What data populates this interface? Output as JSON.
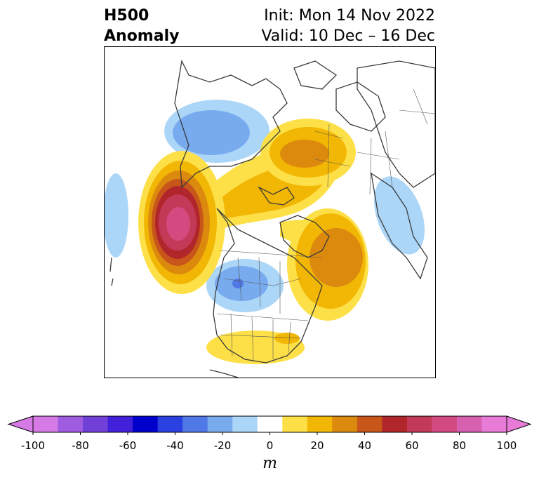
{
  "title": {
    "left_line1": "H500",
    "left_line2": "Anomaly",
    "right_line1": "Init: Mon 14 Nov 2022",
    "right_line2": "Valid: 10 Dec – 16 Dec"
  },
  "colorbar": {
    "unit": "m",
    "min": -100,
    "max": 100,
    "step": 10,
    "tick_values": [
      -100,
      -80,
      -60,
      -40,
      -20,
      0,
      20,
      40,
      60,
      80,
      100
    ],
    "tick_labels": [
      "-100",
      "-80",
      "-60",
      "-40",
      "-20",
      "0",
      "20",
      "40",
      "60",
      "80",
      "100"
    ],
    "extend": "both",
    "colors": [
      "#d67ae6",
      "#a05ce0",
      "#7040d8",
      "#4020d8",
      "#0000cc",
      "#2a40e0",
      "#5078e6",
      "#78aaee",
      "#acd6f8",
      "#ffffff",
      "#fde047",
      "#f2b705",
      "#dc8a0e",
      "#c8561a",
      "#b0262a",
      "#c23a58",
      "#d24a80",
      "#d860b0",
      "#e87ad8"
    ],
    "low_extend_color": "#d67ae6",
    "high_extend_color": "#e87ad8"
  },
  "map": {
    "projection": "polar-stereographic",
    "variable": "500 hPa geopotential height anomaly",
    "anomalies": [
      {
        "sign": "negative",
        "region": "western Siberia / Arctic Russia",
        "peak_m": -30
      },
      {
        "sign": "negative",
        "region": "central Canada / northern Plains",
        "peak_m": -40
      },
      {
        "sign": "negative",
        "region": "central North Pacific",
        "peak_m": -20
      },
      {
        "sign": "negative",
        "region": "western Europe",
        "peak_m": -20
      },
      {
        "sign": "positive",
        "region": "Gulf of Alaska / NE Pacific",
        "peak_m": 80
      },
      {
        "sign": "positive",
        "region": "Greenland / North Atlantic",
        "peak_m": 40
      },
      {
        "sign": "positive",
        "region": "Kara Sea / Arctic Siberia",
        "peak_m": 40
      },
      {
        "sign": "positive",
        "region": "Arctic Ocean / Beaufort Sea",
        "peak_m": 30
      },
      {
        "sign": "positive",
        "region": "southeastern United States",
        "peak_m": 20
      }
    ]
  }
}
